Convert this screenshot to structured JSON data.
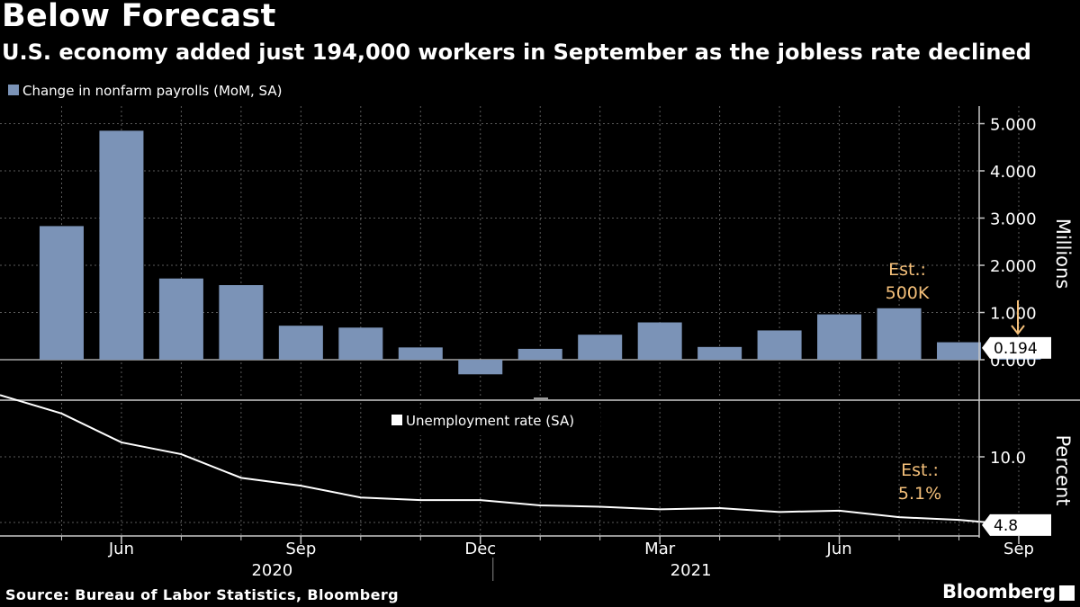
{
  "title": "Below Forecast",
  "subtitle": "U.S. economy added just 194,000 workers in September as the jobless rate declined",
  "source": "Source: Bureau of Labor Statistics, Bloomberg",
  "brand": "Bloomberg",
  "colors": {
    "background": "#000000",
    "bar": "#7b93b7",
    "line": "#ffffff",
    "annotation": "#f5c07a",
    "grid": "#5a5a5a"
  },
  "chart_data": [
    {
      "type": "bar",
      "legend": "Change in nonfarm payrolls (MoM, SA)",
      "legend_position": "top-left",
      "ylabel": "Millions",
      "ylim": [
        -0.8,
        5.5
      ],
      "y_ticks": [
        "0.000",
        "1.000",
        "2.000",
        "3.000",
        "4.000",
        "5.000"
      ],
      "y_tick_values": [
        0,
        1,
        2,
        3,
        4,
        5
      ],
      "grid": true,
      "categories": [
        "2020-05",
        "2020-06",
        "2020-07",
        "2020-08",
        "2020-09",
        "2020-10",
        "2020-11",
        "2020-12",
        "2021-01",
        "2021-02",
        "2021-03",
        "2021-04",
        "2021-05",
        "2021-06",
        "2021-07",
        "2021-08",
        "2021-09"
      ],
      "values": [
        2.83,
        4.85,
        1.72,
        1.58,
        0.72,
        0.68,
        0.26,
        -0.31,
        0.23,
        0.53,
        0.79,
        0.27,
        0.62,
        0.96,
        1.09,
        0.37,
        0.194
      ],
      "last_value_label": "0.194",
      "annotation": {
        "lines": [
          "Est.:",
          "500K"
        ],
        "x": "2021-09",
        "value": 0.5
      }
    },
    {
      "type": "line",
      "legend": "Unemployment rate (SA)",
      "legend_position": "top-center",
      "ylabel": "Percent",
      "ylim": [
        3.5,
        14.6
      ],
      "y_ticks": [
        "10.0"
      ],
      "y_tick_values": [
        10
      ],
      "grid": true,
      "x": [
        "2020-04",
        "2020-05",
        "2020-06",
        "2020-07",
        "2020-08",
        "2020-09",
        "2020-10",
        "2020-11",
        "2020-12",
        "2021-01",
        "2021-02",
        "2021-03",
        "2021-04",
        "2021-05",
        "2021-06",
        "2021-07",
        "2021-08",
        "2021-09"
      ],
      "values": [
        14.7,
        13.3,
        11.1,
        10.2,
        8.4,
        7.8,
        6.9,
        6.7,
        6.7,
        6.3,
        6.2,
        6.0,
        6.1,
        5.8,
        5.9,
        5.4,
        5.2,
        4.8
      ],
      "last_value_label": "4.8",
      "annotation": {
        "lines": [
          "Est.:",
          "5.1%"
        ],
        "x": "2021-09",
        "value": 5.1
      }
    }
  ],
  "x_axis": {
    "ticks": [
      {
        "label": "Jun",
        "x": "2020-06"
      },
      {
        "label": "Sep",
        "x": "2020-09"
      },
      {
        "label": "Dec",
        "x": "2020-12"
      },
      {
        "label": "Mar",
        "x": "2021-03"
      },
      {
        "label": "Jun",
        "x": "2021-06"
      },
      {
        "label": "Sep",
        "x": "2021-09"
      }
    ],
    "years": [
      {
        "label": "2020",
        "x": "2020-09"
      },
      {
        "label": "2021",
        "x": "2021-04"
      }
    ]
  }
}
